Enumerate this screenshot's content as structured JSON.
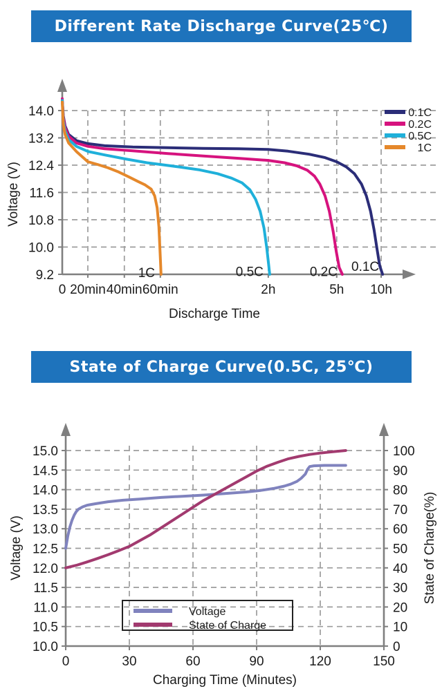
{
  "theme": {
    "banner_bg": "#1e73bc",
    "banner_text": "#ffffff",
    "axis_color": "#7f7f7f",
    "grid_color": "#9c9c9c",
    "text_color": "#1c1c1c",
    "legend_border": "#222222"
  },
  "chart_data": [
    {
      "id": "discharge",
      "type": "line",
      "title": "Different Rate Discharge Curve(25℃)",
      "xlabel": "Discharge Time",
      "ylabel": "Voltage (V)",
      "grid": true,
      "legend_position": "top-right",
      "ylim": [
        9.2,
        14.4
      ],
      "yticks": [
        14.0,
        13.2,
        12.4,
        11.6,
        10.8,
        10.0,
        9.2
      ],
      "ytick_labels": [
        "14.0",
        "13.2",
        "12.4",
        "11.6",
        "10.8",
        "10.0",
        "9.2"
      ],
      "x_axis_note": "non-linear time axis, f = fraction of axis length",
      "xticks": [
        {
          "label": "0",
          "f": 0.0
        },
        {
          "label": "20min",
          "f": 0.0725
        },
        {
          "label": "40min",
          "f": 0.176
        },
        {
          "label": "60min",
          "f": 0.278
        },
        {
          "label": "2h",
          "f": 0.584
        },
        {
          "label": "5h",
          "f": 0.778
        },
        {
          "label": "10h",
          "f": 0.904
        }
      ],
      "series": [
        {
          "name": "0.1C",
          "color": "#2b2d78",
          "points": [
            [
              0.0,
              14.3
            ],
            [
              0.003,
              13.85
            ],
            [
              0.008,
              13.55
            ],
            [
              0.018,
              13.3
            ],
            [
              0.04,
              13.12
            ],
            [
              0.073,
              13.03
            ],
            [
              0.12,
              12.97
            ],
            [
              0.2,
              12.93
            ],
            [
              0.3,
              12.91
            ],
            [
              0.4,
              12.89
            ],
            [
              0.5,
              12.88
            ],
            [
              0.584,
              12.86
            ],
            [
              0.64,
              12.81
            ],
            [
              0.7,
              12.72
            ],
            [
              0.745,
              12.62
            ],
            [
              0.778,
              12.5
            ],
            [
              0.805,
              12.35
            ],
            [
              0.828,
              12.15
            ],
            [
              0.848,
              11.85
            ],
            [
              0.862,
              11.5
            ],
            [
              0.874,
              11.05
            ],
            [
              0.884,
              10.5
            ],
            [
              0.893,
              9.9
            ],
            [
              0.9,
              9.45
            ],
            [
              0.908,
              9.2
            ]
          ]
        },
        {
          "name": "0.2C",
          "color": "#d6137e",
          "points": [
            [
              0.0,
              14.35
            ],
            [
              0.003,
              13.8
            ],
            [
              0.008,
              13.5
            ],
            [
              0.018,
              13.25
            ],
            [
              0.04,
              13.05
            ],
            [
              0.073,
              12.95
            ],
            [
              0.12,
              12.88
            ],
            [
              0.2,
              12.82
            ],
            [
              0.3,
              12.74
            ],
            [
              0.4,
              12.67
            ],
            [
              0.5,
              12.6
            ],
            [
              0.584,
              12.54
            ],
            [
              0.63,
              12.47
            ],
            [
              0.665,
              12.38
            ],
            [
              0.695,
              12.25
            ],
            [
              0.715,
              12.08
            ],
            [
              0.73,
              11.85
            ],
            [
              0.745,
              11.5
            ],
            [
              0.757,
              11.05
            ],
            [
              0.768,
              10.45
            ],
            [
              0.777,
              9.85
            ],
            [
              0.785,
              9.4
            ],
            [
              0.794,
              9.2
            ]
          ]
        },
        {
          "name": "0.5C",
          "color": "#1fb0da",
          "points": [
            [
              0.0,
              14.3
            ],
            [
              0.003,
              13.7
            ],
            [
              0.008,
              13.4
            ],
            [
              0.018,
              13.15
            ],
            [
              0.04,
              12.95
            ],
            [
              0.073,
              12.8
            ],
            [
              0.12,
              12.7
            ],
            [
              0.18,
              12.58
            ],
            [
              0.24,
              12.47
            ],
            [
              0.278,
              12.42
            ],
            [
              0.33,
              12.35
            ],
            [
              0.39,
              12.26
            ],
            [
              0.44,
              12.15
            ],
            [
              0.48,
              12.02
            ],
            [
              0.51,
              11.88
            ],
            [
              0.532,
              11.68
            ],
            [
              0.548,
              11.4
            ],
            [
              0.561,
              11.05
            ],
            [
              0.572,
              10.55
            ],
            [
              0.58,
              9.95
            ],
            [
              0.585,
              9.5
            ],
            [
              0.588,
              9.2
            ]
          ]
        },
        {
          "name": "1C",
          "color": "#e5882b",
          "points": [
            [
              0.0,
              14.25
            ],
            [
              0.003,
              13.6
            ],
            [
              0.008,
              13.3
            ],
            [
              0.018,
              13.05
            ],
            [
              0.04,
              12.8
            ],
            [
              0.0725,
              12.5
            ],
            [
              0.1,
              12.42
            ],
            [
              0.13,
              12.32
            ],
            [
              0.16,
              12.2
            ],
            [
              0.19,
              12.05
            ],
            [
              0.215,
              11.92
            ],
            [
              0.235,
              11.82
            ],
            [
              0.252,
              11.7
            ],
            [
              0.262,
              11.5
            ],
            [
              0.269,
              11.15
            ],
            [
              0.274,
              10.6
            ],
            [
              0.277,
              9.9
            ],
            [
              0.279,
              9.45
            ],
            [
              0.28,
              9.2
            ]
          ]
        }
      ],
      "curve_labels": [
        {
          "text": "1C",
          "x_f": 0.239,
          "v": 9.12
        },
        {
          "text": "0.5C",
          "x_f": 0.531,
          "v": 9.15
        },
        {
          "text": "0.2C",
          "x_f": 0.741,
          "v": 9.15
        },
        {
          "text": "0.1C",
          "x_f": 0.859,
          "v": 9.3
        }
      ]
    },
    {
      "id": "soc",
      "type": "line",
      "title": "State of Charge Curve(0.5C, 25℃)",
      "xlabel": "Charging Time (Minutes)",
      "ylabel_left": "Voltage (V)",
      "ylabel_right": "State of Charge(%)",
      "grid": true,
      "xlim": [
        0,
        150
      ],
      "xtick_labels": [
        "0",
        "30",
        "60",
        "90",
        "120",
        "150"
      ],
      "xticks": [
        0,
        30,
        60,
        90,
        120,
        150
      ],
      "ylim_left": [
        10.0,
        15.0
      ],
      "yticks_left": [
        15.0,
        14.5,
        14.0,
        13.5,
        13.0,
        12.5,
        12.0,
        11.5,
        11.0,
        10.5,
        10.0
      ],
      "ytick_labels_left": [
        "15.0",
        "14.5",
        "14.0",
        "13.5",
        "13.0",
        "12.5",
        "12.0",
        "11.5",
        "11.0",
        "10.5",
        "10.0"
      ],
      "ylim_right": [
        0,
        100
      ],
      "yticks_right": [
        100,
        90,
        80,
        70,
        60,
        50,
        40,
        30,
        20,
        10,
        0
      ],
      "ytick_labels_right": [
        "100",
        "90",
        "80",
        "70",
        "60",
        "50",
        "40",
        "30",
        "20",
        "10",
        "0"
      ],
      "legend_position": "bottom-center-box",
      "series": [
        {
          "name": "Voltage",
          "axis": "left",
          "color": "#8083be",
          "points": [
            [
              0,
              12.5
            ],
            [
              1,
              12.82
            ],
            [
              2,
              13.05
            ],
            [
              3,
              13.22
            ],
            [
              4,
              13.35
            ],
            [
              5,
              13.44
            ],
            [
              6,
              13.5
            ],
            [
              8,
              13.56
            ],
            [
              10,
              13.6
            ],
            [
              14,
              13.64
            ],
            [
              20,
              13.69
            ],
            [
              27,
              13.73
            ],
            [
              35,
              13.76
            ],
            [
              45,
              13.8
            ],
            [
              55,
              13.83
            ],
            [
              65,
              13.86
            ],
            [
              75,
              13.9
            ],
            [
              85,
              13.94
            ],
            [
              92,
              13.98
            ],
            [
              98,
              14.03
            ],
            [
              103,
              14.09
            ],
            [
              106,
              14.14
            ],
            [
              109,
              14.21
            ],
            [
              111,
              14.29
            ],
            [
              113,
              14.4
            ],
            [
              114,
              14.52
            ],
            [
              115,
              14.59
            ],
            [
              117,
              14.61
            ],
            [
              122,
              14.62
            ],
            [
              132,
              14.62
            ]
          ]
        },
        {
          "name": "State of Charge",
          "axis": "right",
          "color": "#a23a6f",
          "points": [
            [
              0,
              40
            ],
            [
              5,
              41.3
            ],
            [
              10,
              43
            ],
            [
              15,
              44.8
            ],
            [
              20,
              46.7
            ],
            [
              25,
              48.8
            ],
            [
              30,
              51
            ],
            [
              35,
              54
            ],
            [
              40,
              57
            ],
            [
              45,
              60.5
            ],
            [
              50,
              64
            ],
            [
              55,
              67.5
            ],
            [
              60,
              71
            ],
            [
              65,
              74.5
            ],
            [
              70,
              77.5
            ],
            [
              75,
              80.5
            ],
            [
              80,
              83.5
            ],
            [
              85,
              86.5
            ],
            [
              90,
              89.5
            ],
            [
              95,
              92
            ],
            [
              100,
              94
            ],
            [
              105,
              95.8
            ],
            [
              110,
              97
            ],
            [
              115,
              98
            ],
            [
              120,
              98.7
            ],
            [
              125,
              99.3
            ],
            [
              132,
              100
            ]
          ]
        }
      ]
    }
  ]
}
